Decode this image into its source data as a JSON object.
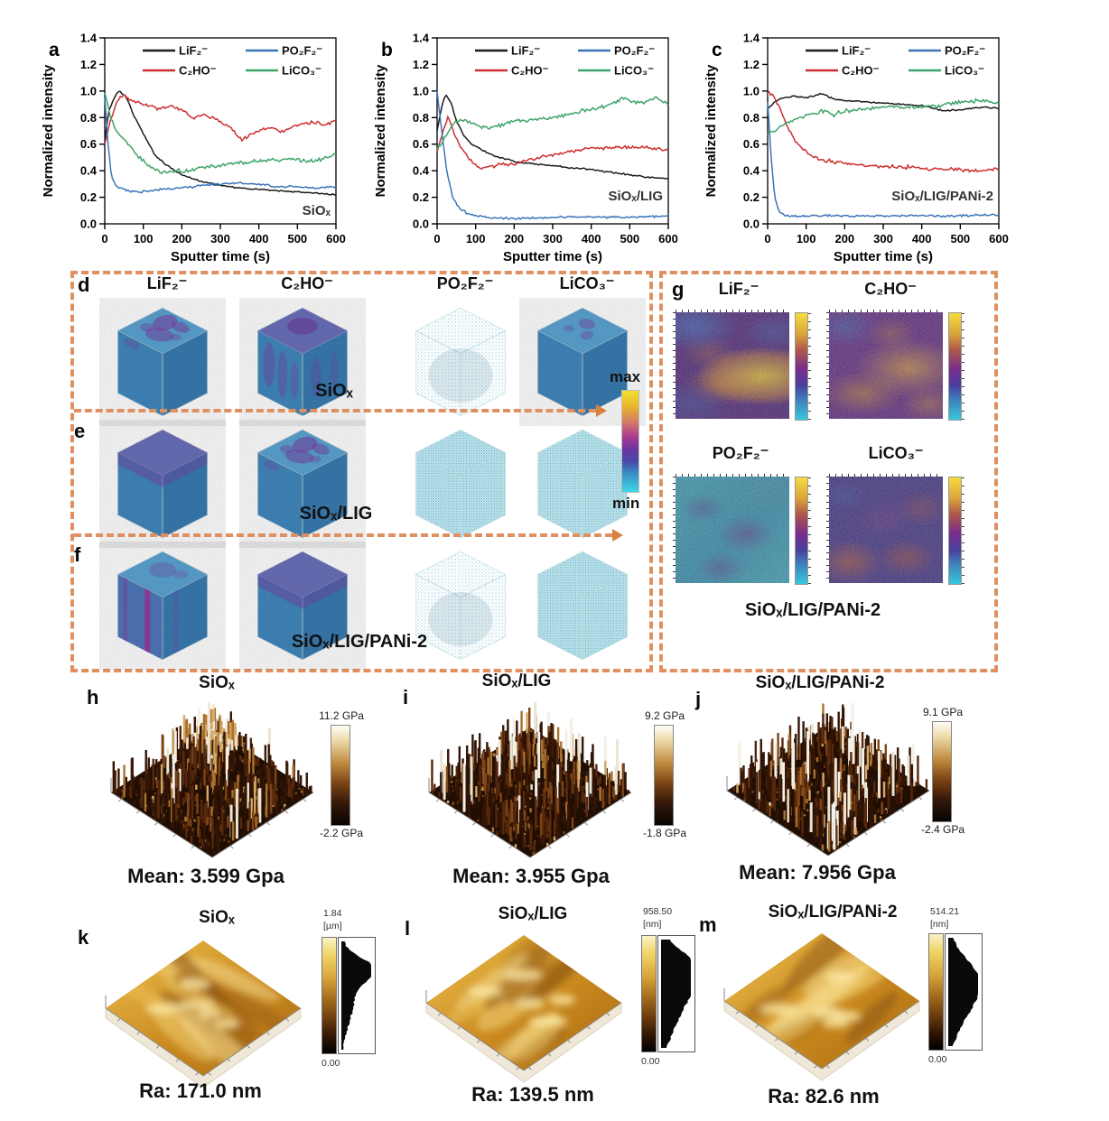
{
  "accent_dashed_color": "#e09060",
  "chart_data": [
    {
      "type": "line",
      "letter": "a",
      "sample_label": "SiOₓ",
      "xlabel": "Sputter time (s)",
      "ylabel": "Normalized intensity",
      "xlim": [
        0,
        600
      ],
      "ylim": [
        0,
        1.4
      ],
      "xticks": [
        0,
        100,
        200,
        300,
        400,
        500,
        600
      ],
      "yticks": [
        0.0,
        0.2,
        0.4,
        0.6,
        0.8,
        1.0,
        1.2,
        1.4
      ],
      "series": [
        {
          "name": "LiF₂⁻",
          "color": "#1c1c1c",
          "points": [
            [
              0,
              0.62
            ],
            [
              10,
              0.85
            ],
            [
              25,
              0.95
            ],
            [
              35,
              1.0
            ],
            [
              55,
              0.96
            ],
            [
              75,
              0.82
            ],
            [
              100,
              0.68
            ],
            [
              130,
              0.52
            ],
            [
              160,
              0.44
            ],
            [
              200,
              0.37
            ],
            [
              250,
              0.32
            ],
            [
              300,
              0.29
            ],
            [
              350,
              0.27
            ],
            [
              400,
              0.26
            ],
            [
              450,
              0.25
            ],
            [
              500,
              0.24
            ],
            [
              550,
              0.23
            ],
            [
              600,
              0.22
            ]
          ]
        },
        {
          "name": "C₂HO⁻",
          "color": "#cc2f2f",
          "points": [
            [
              0,
              0.6
            ],
            [
              15,
              0.78
            ],
            [
              30,
              0.92
            ],
            [
              45,
              0.97
            ],
            [
              70,
              0.93
            ],
            [
              100,
              0.9
            ],
            [
              140,
              0.87
            ],
            [
              170,
              0.89
            ],
            [
              200,
              0.86
            ],
            [
              230,
              0.8
            ],
            [
              260,
              0.82
            ],
            [
              300,
              0.77
            ],
            [
              330,
              0.72
            ],
            [
              355,
              0.63
            ],
            [
              375,
              0.67
            ],
            [
              400,
              0.7
            ],
            [
              430,
              0.73
            ],
            [
              460,
              0.69
            ],
            [
              500,
              0.74
            ],
            [
              540,
              0.77
            ],
            [
              570,
              0.74
            ],
            [
              600,
              0.78
            ]
          ]
        },
        {
          "name": "PO₂F₂⁻",
          "color": "#3c76b8",
          "points": [
            [
              0,
              0.95
            ],
            [
              8,
              0.62
            ],
            [
              18,
              0.35
            ],
            [
              30,
              0.28
            ],
            [
              60,
              0.25
            ],
            [
              100,
              0.24
            ],
            [
              150,
              0.26
            ],
            [
              200,
              0.27
            ],
            [
              250,
              0.29
            ],
            [
              300,
              0.3
            ],
            [
              350,
              0.31
            ],
            [
              400,
              0.3
            ],
            [
              450,
              0.28
            ],
            [
              500,
              0.28
            ],
            [
              550,
              0.27
            ],
            [
              600,
              0.28
            ]
          ]
        },
        {
          "name": "LiCO₃⁻",
          "color": "#3fa46a",
          "points": [
            [
              0,
              1.0
            ],
            [
              15,
              0.8
            ],
            [
              30,
              0.7
            ],
            [
              60,
              0.6
            ],
            [
              90,
              0.5
            ],
            [
              120,
              0.42
            ],
            [
              150,
              0.39
            ],
            [
              180,
              0.4
            ],
            [
              220,
              0.4
            ],
            [
              260,
              0.43
            ],
            [
              300,
              0.44
            ],
            [
              350,
              0.46
            ],
            [
              400,
              0.47
            ],
            [
              440,
              0.48
            ],
            [
              480,
              0.49
            ],
            [
              520,
              0.47
            ],
            [
              560,
              0.48
            ],
            [
              600,
              0.52
            ]
          ]
        }
      ]
    },
    {
      "type": "line",
      "letter": "b",
      "sample_label": "SiOₓ/LIG",
      "xlabel": "Sputter time (s)",
      "ylabel": "Normalized intensity",
      "xlim": [
        0,
        600
      ],
      "ylim": [
        0,
        1.4
      ],
      "xticks": [
        0,
        100,
        200,
        300,
        400,
        500,
        600
      ],
      "yticks": [
        0.0,
        0.2,
        0.4,
        0.6,
        0.8,
        1.0,
        1.2,
        1.4
      ],
      "series": [
        {
          "name": "LiF₂⁻",
          "color": "#1c1c1c",
          "points": [
            [
              0,
              0.7
            ],
            [
              12,
              0.88
            ],
            [
              22,
              0.98
            ],
            [
              35,
              0.92
            ],
            [
              50,
              0.78
            ],
            [
              70,
              0.66
            ],
            [
              90,
              0.6
            ],
            [
              120,
              0.55
            ],
            [
              150,
              0.51
            ],
            [
              200,
              0.47
            ],
            [
              250,
              0.45
            ],
            [
              300,
              0.44
            ],
            [
              350,
              0.42
            ],
            [
              400,
              0.41
            ],
            [
              450,
              0.39
            ],
            [
              500,
              0.37
            ],
            [
              550,
              0.35
            ],
            [
              600,
              0.34
            ]
          ]
        },
        {
          "name": "C₂HO⁻",
          "color": "#cc2f2f",
          "points": [
            [
              0,
              0.55
            ],
            [
              15,
              0.7
            ],
            [
              28,
              0.8
            ],
            [
              40,
              0.72
            ],
            [
              60,
              0.58
            ],
            [
              85,
              0.49
            ],
            [
              110,
              0.42
            ],
            [
              140,
              0.43
            ],
            [
              170,
              0.45
            ],
            [
              200,
              0.45
            ],
            [
              240,
              0.48
            ],
            [
              280,
              0.51
            ],
            [
              320,
              0.53
            ],
            [
              360,
              0.55
            ],
            [
              400,
              0.57
            ],
            [
              450,
              0.57
            ],
            [
              500,
              0.58
            ],
            [
              550,
              0.57
            ],
            [
              600,
              0.56
            ]
          ]
        },
        {
          "name": "PO₂F₂⁻",
          "color": "#3c76b8",
          "points": [
            [
              0,
              1.0
            ],
            [
              12,
              0.7
            ],
            [
              25,
              0.4
            ],
            [
              40,
              0.2
            ],
            [
              60,
              0.11
            ],
            [
              85,
              0.07
            ],
            [
              120,
              0.05
            ],
            [
              200,
              0.04
            ],
            [
              300,
              0.05
            ],
            [
              400,
              0.05
            ],
            [
              500,
              0.05
            ],
            [
              600,
              0.06
            ]
          ]
        },
        {
          "name": "LiCO₃⁻",
          "color": "#3fa46a",
          "points": [
            [
              0,
              0.57
            ],
            [
              15,
              0.62
            ],
            [
              30,
              0.7
            ],
            [
              45,
              0.77
            ],
            [
              70,
              0.78
            ],
            [
              100,
              0.75
            ],
            [
              130,
              0.72
            ],
            [
              160,
              0.74
            ],
            [
              200,
              0.77
            ],
            [
              240,
              0.78
            ],
            [
              280,
              0.79
            ],
            [
              320,
              0.81
            ],
            [
              360,
              0.84
            ],
            [
              400,
              0.86
            ],
            [
              430,
              0.88
            ],
            [
              460,
              0.91
            ],
            [
              480,
              0.95
            ],
            [
              510,
              0.91
            ],
            [
              540,
              0.92
            ],
            [
              570,
              0.95
            ],
            [
              600,
              0.9
            ]
          ]
        }
      ]
    },
    {
      "type": "line",
      "letter": "c",
      "sample_label": "SiOₓ/LIG/PANi-2",
      "xlabel": "Sputter time (s)",
      "ylabel": "Normalized intensity",
      "xlim": [
        0,
        600
      ],
      "ylim": [
        0,
        1.4
      ],
      "xticks": [
        0,
        100,
        200,
        300,
        400,
        500,
        600
      ],
      "yticks": [
        0.0,
        0.2,
        0.4,
        0.6,
        0.8,
        1.0,
        1.2,
        1.4
      ],
      "series": [
        {
          "name": "LiF₂⁻",
          "color": "#1c1c1c",
          "points": [
            [
              0,
              0.86
            ],
            [
              20,
              0.92
            ],
            [
              40,
              0.95
            ],
            [
              70,
              0.96
            ],
            [
              100,
              0.95
            ],
            [
              140,
              0.98
            ],
            [
              170,
              0.94
            ],
            [
              200,
              0.93
            ],
            [
              250,
              0.92
            ],
            [
              300,
              0.91
            ],
            [
              350,
              0.9
            ],
            [
              400,
              0.89
            ],
            [
              430,
              0.87
            ],
            [
              460,
              0.85
            ],
            [
              500,
              0.86
            ],
            [
              550,
              0.88
            ],
            [
              600,
              0.87
            ]
          ]
        },
        {
          "name": "C₂HO⁻",
          "color": "#cc2f2f",
          "points": [
            [
              0,
              1.0
            ],
            [
              15,
              0.97
            ],
            [
              30,
              0.88
            ],
            [
              50,
              0.74
            ],
            [
              70,
              0.63
            ],
            [
              90,
              0.57
            ],
            [
              110,
              0.52
            ],
            [
              130,
              0.49
            ],
            [
              160,
              0.47
            ],
            [
              200,
              0.46
            ],
            [
              250,
              0.44
            ],
            [
              300,
              0.43
            ],
            [
              350,
              0.43
            ],
            [
              400,
              0.42
            ],
            [
              450,
              0.41
            ],
            [
              500,
              0.41
            ],
            [
              550,
              0.4
            ],
            [
              600,
              0.41
            ]
          ]
        },
        {
          "name": "PO₂F₂⁻",
          "color": "#3c76b8",
          "points": [
            [
              0,
              0.92
            ],
            [
              8,
              0.55
            ],
            [
              18,
              0.2
            ],
            [
              30,
              0.09
            ],
            [
              50,
              0.06
            ],
            [
              100,
              0.06
            ],
            [
              200,
              0.06
            ],
            [
              300,
              0.06
            ],
            [
              400,
              0.06
            ],
            [
              500,
              0.06
            ],
            [
              600,
              0.07
            ]
          ]
        },
        {
          "name": "LiCO₃⁻",
          "color": "#3fa46a",
          "points": [
            [
              0,
              0.68
            ],
            [
              25,
              0.71
            ],
            [
              50,
              0.76
            ],
            [
              80,
              0.8
            ],
            [
              110,
              0.82
            ],
            [
              140,
              0.85
            ],
            [
              170,
              0.82
            ],
            [
              200,
              0.85
            ],
            [
              250,
              0.86
            ],
            [
              300,
              0.88
            ],
            [
              350,
              0.88
            ],
            [
              400,
              0.88
            ],
            [
              450,
              0.89
            ],
            [
              500,
              0.92
            ],
            [
              550,
              0.93
            ],
            [
              600,
              0.91
            ]
          ]
        }
      ]
    }
  ],
  "tof": {
    "ion_headers": [
      "LiF₂⁻",
      "C₂HO⁻",
      "PO₂F₂⁻",
      "LiCO₃⁻"
    ],
    "rows": [
      {
        "letter": "d",
        "sample": "SiOₓ",
        "cubes": [
          "solid-top",
          "solid-heavy",
          "sparse",
          "solid-few"
        ]
      },
      {
        "letter": "e",
        "sample": "SiOₓ/LIG",
        "cubes": [
          "solid-band",
          "solid-top",
          "sparse-dense",
          "sparse-dense"
        ]
      },
      {
        "letter": "f",
        "sample": "SiOₓ/LIG/PANi-2",
        "cubes": [
          "solid-stripes",
          "solid-band",
          "sparse",
          "sparse-dense"
        ]
      }
    ],
    "colorbar": {
      "top": "max",
      "bottom": "min"
    }
  },
  "gmaps": {
    "letter": "g",
    "maps": [
      {
        "label": "LiF₂⁻"
      },
      {
        "label": "C₂HO⁻"
      },
      {
        "label": "PO₂F₂⁻"
      },
      {
        "label": "LiCO₃⁻"
      }
    ],
    "sample": "SiOₓ/LIG/PANi-2"
  },
  "modulus": [
    {
      "letter": "h",
      "title": "SiOₓ",
      "cbar_top": "11.2 GPa",
      "cbar_bottom": "-2.2 GPa",
      "mean": "Mean: 3.599 Gpa"
    },
    {
      "letter": "i",
      "title": "SiOₓ/LIG",
      "cbar_top": "9.2 GPa",
      "cbar_bottom": "-1.8 GPa",
      "mean": "Mean: 3.955 Gpa"
    },
    {
      "letter": "j",
      "title": "SiOₓ/LIG/PANi-2",
      "cbar_top": "9.1 GPa",
      "cbar_bottom": "-2.4 GPa",
      "mean": "Mean: 7.956 Gpa"
    }
  ],
  "roughness": [
    {
      "letter": "k",
      "title": "SiOₓ",
      "cbar_top": "1.84",
      "cbar_unit": "[µm]",
      "cbar_bottom": "0.00",
      "ra": "Ra: 171.0 nm"
    },
    {
      "letter": "l",
      "title": "SiOₓ/LIG",
      "cbar_top": "958.50",
      "cbar_unit": "[nm]",
      "cbar_bottom": "0.00",
      "ra": "Ra: 139.5 nm"
    },
    {
      "letter": "m",
      "title": "SiOₓ/LIG/PANi-2",
      "cbar_top": "514.21",
      "cbar_unit": "[nm]",
      "cbar_bottom": "0.00",
      "ra": "Ra: 82.6 nm"
    }
  ]
}
